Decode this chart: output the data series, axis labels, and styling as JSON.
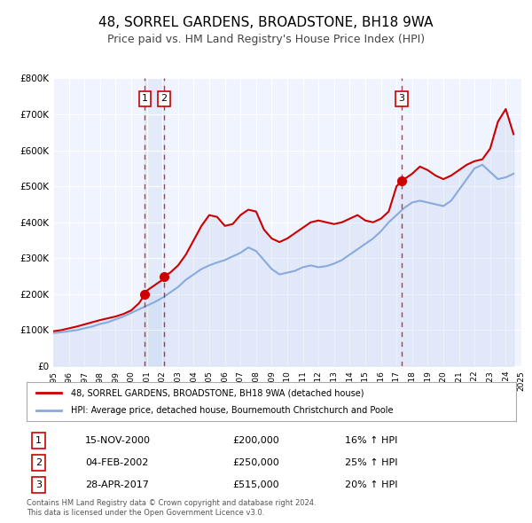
{
  "title": "48, SORREL GARDENS, BROADSTONE, BH18 9WA",
  "subtitle": "Price paid vs. HM Land Registry's House Price Index (HPI)",
  "title_fontsize": 11,
  "subtitle_fontsize": 9,
  "background_color": "#ffffff",
  "plot_bg_color": "#f0f4ff",
  "grid_color": "#ffffff",
  "ylabel_color": "#333333",
  "line1_color": "#cc0000",
  "line2_color": "#88aadd",
  "line1_label": "48, SORREL GARDENS, BROADSTONE, BH18 9WA (detached house)",
  "line2_label": "HPI: Average price, detached house, Bournemouth Christchurch and Poole",
  "xmin": 1995,
  "xmax": 2025,
  "ymin": 0,
  "ymax": 800000,
  "yticks": [
    0,
    100000,
    200000,
    300000,
    400000,
    500000,
    600000,
    700000,
    800000
  ],
  "ytick_labels": [
    "£0",
    "£100K",
    "£200K",
    "£300K",
    "£400K",
    "£500K",
    "£600K",
    "£700K",
    "£800K"
  ],
  "transactions": [
    {
      "num": 1,
      "date": "15-NOV-2000",
      "price": 200000,
      "hpi_pct": "16%",
      "year": 2000.88
    },
    {
      "num": 2,
      "date": "04-FEB-2002",
      "price": 250000,
      "hpi_pct": "25%",
      "year": 2002.09
    },
    {
      "num": 3,
      "date": "28-APR-2017",
      "price": 515000,
      "hpi_pct": "20%",
      "year": 2017.32
    }
  ],
  "footnote": "Contains HM Land Registry data © Crown copyright and database right 2024.\nThis data is licensed under the Open Government Licence v3.0.",
  "hpi_data_x": [
    1995,
    1995.5,
    1996,
    1996.5,
    1997,
    1997.5,
    1998,
    1998.5,
    1999,
    1999.5,
    2000,
    2000.5,
    2001,
    2001.5,
    2002,
    2002.5,
    2003,
    2003.5,
    2004,
    2004.5,
    2005,
    2005.5,
    2006,
    2006.5,
    2007,
    2007.5,
    2008,
    2008.5,
    2009,
    2009.5,
    2010,
    2010.5,
    2011,
    2011.5,
    2012,
    2012.5,
    2013,
    2013.5,
    2014,
    2014.5,
    2015,
    2015.5,
    2016,
    2016.5,
    2017,
    2017.5,
    2018,
    2018.5,
    2019,
    2019.5,
    2020,
    2020.5,
    2021,
    2021.5,
    2022,
    2022.5,
    2023,
    2023.5,
    2024,
    2024.5
  ],
  "hpi_data_y": [
    92000,
    94000,
    97000,
    100000,
    105000,
    110000,
    117000,
    122000,
    130000,
    138000,
    148000,
    158000,
    168000,
    178000,
    190000,
    205000,
    220000,
    240000,
    255000,
    270000,
    280000,
    288000,
    295000,
    305000,
    315000,
    330000,
    320000,
    295000,
    270000,
    255000,
    260000,
    265000,
    275000,
    280000,
    275000,
    278000,
    285000,
    295000,
    310000,
    325000,
    340000,
    355000,
    375000,
    400000,
    420000,
    440000,
    455000,
    460000,
    455000,
    450000,
    445000,
    460000,
    490000,
    520000,
    550000,
    560000,
    540000,
    520000,
    525000,
    535000
  ],
  "price_data_x": [
    1995,
    1995.5,
    1996,
    1996.5,
    1997,
    1997.5,
    1998,
    1998.5,
    1999,
    1999.5,
    2000,
    2000.5,
    2000.88,
    2001,
    2001.5,
    2002,
    2002.09,
    2002.5,
    2003,
    2003.5,
    2004,
    2004.5,
    2005,
    2005.5,
    2006,
    2006.5,
    2007,
    2007.5,
    2008,
    2008.5,
    2009,
    2009.5,
    2010,
    2010.5,
    2011,
    2011.5,
    2012,
    2012.5,
    2013,
    2013.5,
    2014,
    2014.5,
    2015,
    2015.5,
    2016,
    2016.5,
    2017,
    2017.32,
    2017.5,
    2018,
    2018.5,
    2019,
    2019.5,
    2020,
    2020.5,
    2021,
    2021.5,
    2022,
    2022.5,
    2023,
    2023.5,
    2024,
    2024.5
  ],
  "price_data_y": [
    97000,
    100000,
    105000,
    110000,
    116000,
    122000,
    128000,
    133000,
    138000,
    145000,
    155000,
    175000,
    200000,
    210000,
    225000,
    240000,
    250000,
    260000,
    280000,
    310000,
    350000,
    390000,
    420000,
    415000,
    390000,
    395000,
    420000,
    435000,
    430000,
    380000,
    355000,
    345000,
    355000,
    370000,
    385000,
    400000,
    405000,
    400000,
    395000,
    400000,
    410000,
    420000,
    405000,
    400000,
    410000,
    430000,
    500000,
    515000,
    520000,
    535000,
    555000,
    545000,
    530000,
    520000,
    530000,
    545000,
    560000,
    570000,
    575000,
    605000,
    680000,
    715000,
    645000
  ]
}
